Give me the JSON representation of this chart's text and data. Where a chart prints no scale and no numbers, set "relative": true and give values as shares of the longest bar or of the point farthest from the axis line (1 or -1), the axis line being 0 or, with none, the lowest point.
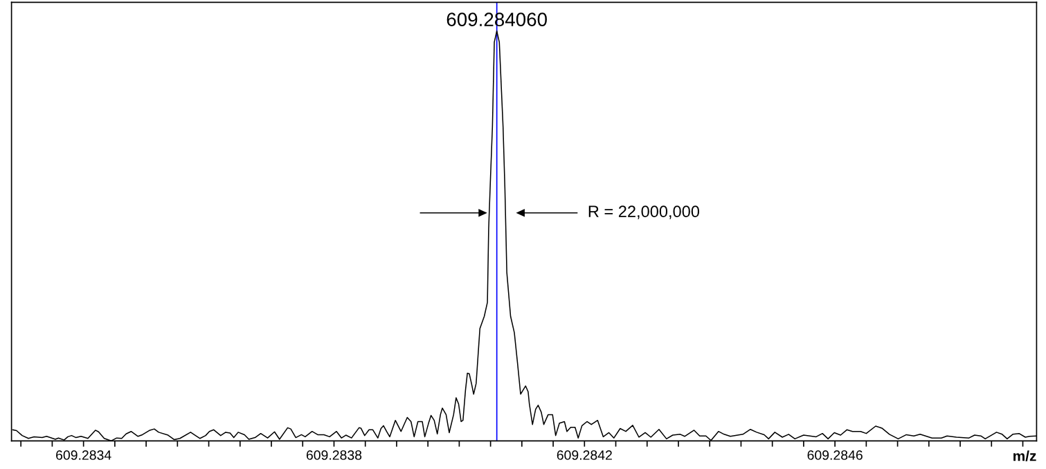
{
  "chart_data": {
    "type": "line",
    "relative": true,
    "xlabel": "m/z",
    "xlim": [
      609.283285,
      609.284922
    ],
    "xticks": [
      {
        "value": 609.2833,
        "label": null
      },
      {
        "value": 609.28335,
        "label": null
      },
      609.2834,
      {
        "value": 609.28345,
        "label": null
      },
      {
        "value": 609.2835,
        "label": null
      },
      {
        "value": 609.28355,
        "label": null
      },
      {
        "value": 609.2836,
        "label": null
      },
      {
        "value": 609.28365,
        "label": null
      },
      {
        "value": 609.2837,
        "label": null
      },
      {
        "value": 609.28375,
        "label": null
      },
      609.2838,
      {
        "value": 609.28385,
        "label": null
      },
      {
        "value": 609.2839,
        "label": null
      },
      {
        "value": 609.28395,
        "label": null
      },
      {
        "value": 609.284,
        "label": null
      },
      {
        "value": 609.28405,
        "label": null
      },
      {
        "value": 609.2841,
        "label": null
      },
      {
        "value": 609.28415,
        "label": null
      },
      609.2842,
      {
        "value": 609.28425,
        "label": null
      },
      {
        "value": 609.2843,
        "label": null
      },
      {
        "value": 609.28435,
        "label": null
      },
      {
        "value": 609.2844,
        "label": null
      },
      {
        "value": 609.28445,
        "label": null
      },
      {
        "value": 609.2845,
        "label": null
      },
      {
        "value": 609.28455,
        "label": null
      },
      609.2846,
      {
        "value": 609.28465,
        "label": null
      },
      {
        "value": 609.2847,
        "label": null
      },
      {
        "value": 609.28475,
        "label": null
      },
      {
        "value": 609.2848,
        "label": null
      },
      {
        "value": 609.28485,
        "label": null
      },
      {
        "value": 609.2849,
        "label": null
      }
    ],
    "grid": false,
    "marker": "none",
    "line_style": "solid",
    "series": [
      {
        "color": "#000000",
        "x": [
          609.283287,
          609.283293,
          609.283302,
          609.283312,
          609.283321,
          609.283334,
          609.283341,
          609.283355,
          609.28336,
          609.283369,
          609.283375,
          609.283381,
          609.283388,
          609.283396,
          609.283407,
          609.283419,
          609.283424,
          609.283433,
          609.283444,
          609.283453,
          609.283461,
          609.283468,
          609.283476,
          609.283487,
          609.283494,
          609.283506,
          609.283513,
          609.28352,
          609.283535,
          609.283545,
          609.283554,
          609.283571,
          609.283578,
          609.283586,
          609.283595,
          609.283601,
          609.283608,
          609.283619,
          609.283627,
          609.283634,
          609.28364,
          609.283647,
          609.283657,
          609.283664,
          609.283674,
          609.283683,
          609.283694,
          609.283705,
          609.283713,
          609.283726,
          609.283731,
          609.283739,
          609.283748,
          609.283754,
          609.283765,
          609.283774,
          609.283784,
          609.283793,
          609.283804,
          609.283812,
          609.283819,
          609.283828,
          609.28384,
          609.283843,
          609.283849,
          609.283856,
          609.283862,
          609.28387,
          609.283875,
          609.283879,
          609.283884,
          609.283889,
          609.283898,
          609.283907,
          609.283917,
          609.283923,
          609.283928,
          609.283934,
          609.283941,
          609.283945,
          609.283951,
          609.283955,
          609.28396,
          609.283965,
          609.28397,
          609.283973,
          609.283979,
          609.283984,
          609.283991,
          609.283995,
          609.283999,
          609.284003,
          609.284006,
          609.28401,
          609.284013,
          609.284016,
          609.28402,
          609.284023,
          609.284027,
          609.284033,
          609.28404,
          609.284045,
          609.284047,
          609.28405,
          609.284053,
          609.284056,
          609.28406,
          609.284064,
          609.28407,
          609.284073,
          609.284076,
          609.284082,
          609.284088,
          609.284093,
          609.284098,
          609.284106,
          609.28411,
          609.284112,
          609.284117,
          609.284122,
          609.284126,
          609.284131,
          609.284135,
          609.284142,
          609.284149,
          609.284154,
          609.28416,
          609.284168,
          609.284172,
          609.284178,
          609.284185,
          609.28419,
          609.284196,
          609.284204,
          609.284211,
          609.284221,
          609.28423,
          609.284239,
          609.284247,
          609.284257,
          609.284266,
          609.284277,
          609.284287,
          609.284297,
          609.284306,
          609.284319,
          609.284331,
          609.284341,
          609.284353,
          609.28436,
          609.284375,
          609.284384,
          609.284394,
          609.284402,
          609.284414,
          609.284423,
          609.284433,
          609.284453,
          609.284465,
          609.284475,
          609.284487,
          609.284494,
          609.284504,
          609.284516,
          609.284526,
          609.284536,
          609.28455,
          609.28457,
          609.28458,
          609.284589,
          609.284599,
          609.284609,
          609.284619,
          609.284628,
          609.284641,
          609.28465,
          609.284665,
          609.284675,
          609.284687,
          609.284701,
          609.284714,
          609.284726,
          609.284736,
          609.284755,
          609.28477,
          609.284779,
          609.284794,
          609.284814,
          609.284823,
          609.284833,
          609.28484,
          609.284858,
          609.284867,
          609.284875,
          609.284884,
          609.284894,
          609.284904,
          609.284911,
          609.284921
        ],
        "values": [
          0.027,
          0.025,
          0.013,
          0.006,
          0.01,
          0.008,
          0.011,
          0.004,
          0.007,
          0.002,
          0.01,
          0.013,
          0.008,
          0.011,
          0.006,
          0.026,
          0.022,
          0.006,
          0.0,
          0.007,
          0.006,
          0.017,
          0.023,
          0.011,
          0.015,
          0.026,
          0.029,
          0.021,
          0.014,
          0.003,
          0.006,
          0.021,
          0.014,
          0.006,
          0.013,
          0.023,
          0.027,
          0.013,
          0.021,
          0.019,
          0.008,
          0.021,
          0.015,
          0.004,
          0.008,
          0.018,
          0.007,
          0.022,
          0.004,
          0.032,
          0.029,
          0.008,
          0.015,
          0.01,
          0.023,
          0.015,
          0.015,
          0.01,
          0.023,
          0.007,
          0.014,
          0.007,
          0.032,
          0.031,
          0.013,
          0.027,
          0.027,
          0.007,
          0.03,
          0.037,
          0.023,
          0.01,
          0.05,
          0.023,
          0.057,
          0.047,
          0.01,
          0.047,
          0.047,
          0.01,
          0.043,
          0.062,
          0.05,
          0.017,
          0.064,
          0.08,
          0.064,
          0.02,
          0.064,
          0.105,
          0.09,
          0.047,
          0.05,
          0.124,
          0.165,
          0.164,
          0.137,
          0.114,
          0.14,
          0.274,
          0.304,
          0.338,
          0.518,
          0.645,
          0.766,
          0.973,
          1.0,
          0.973,
          0.766,
          0.612,
          0.411,
          0.304,
          0.264,
          0.191,
          0.114,
          0.134,
          0.12,
          0.09,
          0.04,
          0.077,
          0.087,
          0.07,
          0.04,
          0.064,
          0.064,
          0.013,
          0.043,
          0.047,
          0.023,
          0.033,
          0.033,
          0.007,
          0.037,
          0.047,
          0.04,
          0.05,
          0.01,
          0.02,
          0.007,
          0.03,
          0.023,
          0.038,
          0.009,
          0.02,
          0.009,
          0.028,
          0.005,
          0.014,
          0.016,
          0.011,
          0.026,
          0.012,
          0.012,
          0.001,
          0.023,
          0.016,
          0.011,
          0.016,
          0.028,
          0.021,
          0.015,
          0.005,
          0.021,
          0.009,
          0.016,
          0.005,
          0.014,
          0.01,
          0.018,
          0.005,
          0.02,
          0.014,
          0.027,
          0.023,
          0.023,
          0.018,
          0.036,
          0.031,
          0.016,
          0.005,
          0.015,
          0.012,
          0.016,
          0.007,
          0.007,
          0.012,
          0.009,
          0.007,
          0.014,
          0.012,
          0.005,
          0.021,
          0.016,
          0.005,
          0.016,
          0.018,
          0.009,
          0.011,
          0.012
        ]
      }
    ],
    "ref_lines": [
      {
        "axis": "x",
        "value": 609.28406,
        "color": "#0000ff",
        "line_style": "solid"
      }
    ],
    "annotations": [
      {
        "text": "609.284060",
        "x": 609.28406,
        "y": 1.0
      },
      "R = 22,000,000"
    ]
  }
}
